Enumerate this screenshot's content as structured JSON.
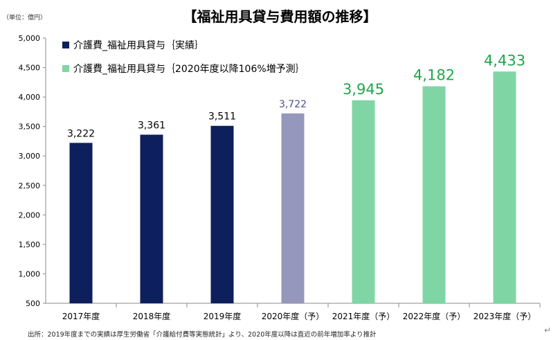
{
  "title": "【福祉用具貸与費用額の推移】",
  "unit_label": "（単位：億円）",
  "footnote": "出所：2019年度までの実績は厚生労働省「介護給付費等実態統計」より、2020年度以降は直近の前年増加率より推計",
  "colors": {
    "actual": "#0d1f5c",
    "estimate_2020": "#9597bd",
    "forecast": "#7fd6a4",
    "forecast_label": "#21a64a",
    "estimate_label": "#4b4f87"
  },
  "chart_data": {
    "type": "bar",
    "title": "【福祉用具貸与費用額の推移】",
    "xlabel": "",
    "ylabel": "",
    "ylim": [
      500,
      5000
    ],
    "yticks": [
      500,
      1000,
      1500,
      2000,
      2500,
      3000,
      3500,
      4000,
      4500,
      5000
    ],
    "ytick_labels": [
      "500",
      "1,000",
      "1,500",
      "2,000",
      "2,500",
      "3,000",
      "3,500",
      "4,000",
      "4,500",
      "5,000"
    ],
    "grid": false,
    "legend_position": "top-left",
    "categories": [
      "2017年度",
      "2018年度",
      "2019年度",
      "2020年度（予）",
      "2021年度（予）",
      "2022年度（予）",
      "2023年度（予）"
    ],
    "values": [
      3222,
      3361,
      3511,
      3722,
      3945,
      4182,
      4433
    ],
    "value_labels": [
      "3,222",
      "3,361",
      "3,511",
      "3,722",
      "3,945",
      "4,182",
      "4,433"
    ],
    "bar_kinds": [
      "actual",
      "actual",
      "actual",
      "estimate_2020",
      "forecast",
      "forecast",
      "forecast"
    ],
    "series": [
      {
        "name": "介護費_福祉用具貸与｛実績｝",
        "kind": "actual"
      },
      {
        "name": "介護費_福祉用具貸与｛2020年度以降106%増予測｝",
        "kind": "forecast"
      }
    ]
  }
}
